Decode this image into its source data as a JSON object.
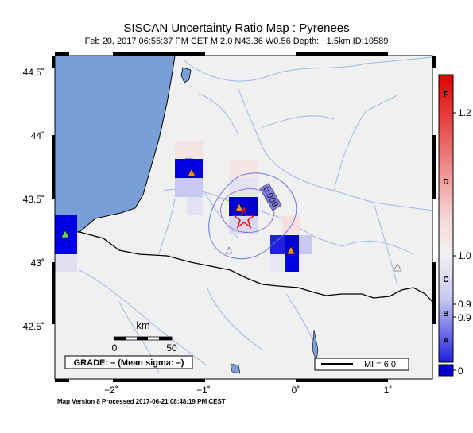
{
  "title": "SISCAN Uncertainty Ratio Map : Pyrenees",
  "subtitle": "Feb 20, 2017 06:55:37 PM CET    M 2.0    N43.36 W0.56    Depth: −1.5km    ID:10589",
  "footer": "Map Version 8 Processed 2017-06-21 08:48:19 PM CEST",
  "axes": {
    "x_ticks": [
      "−2˚",
      "−1˚",
      "0˚",
      "1˚"
    ],
    "y_ticks": [
      "44.5˚",
      "44˚",
      "43.5˚",
      "43˚",
      "42.5˚"
    ]
  },
  "scale_bar": {
    "label": "km",
    "start": "0",
    "end": "50"
  },
  "grade_box": "GRADE: – (Mean sigma: –)",
  "mi_box": "MI = 6.0",
  "contour_label": "0.009",
  "colorbar": {
    "letters": [
      "F",
      "D",
      "C",
      "B",
      "A"
    ],
    "values": [
      "1.2",
      "1.0",
      "0.9",
      "0.9",
      "0"
    ],
    "colors": {
      "top": "#e00000",
      "mid": "#f2f2f2",
      "bottom": "#0000e0"
    }
  },
  "colors": {
    "land": "#f0f0f0",
    "sea": "#7a9fd8",
    "river": "#9fb7e6",
    "border": "#000000",
    "station": "#f08c1e",
    "station_green": "#6ad06a",
    "epicenter": "#ff0000"
  }
}
